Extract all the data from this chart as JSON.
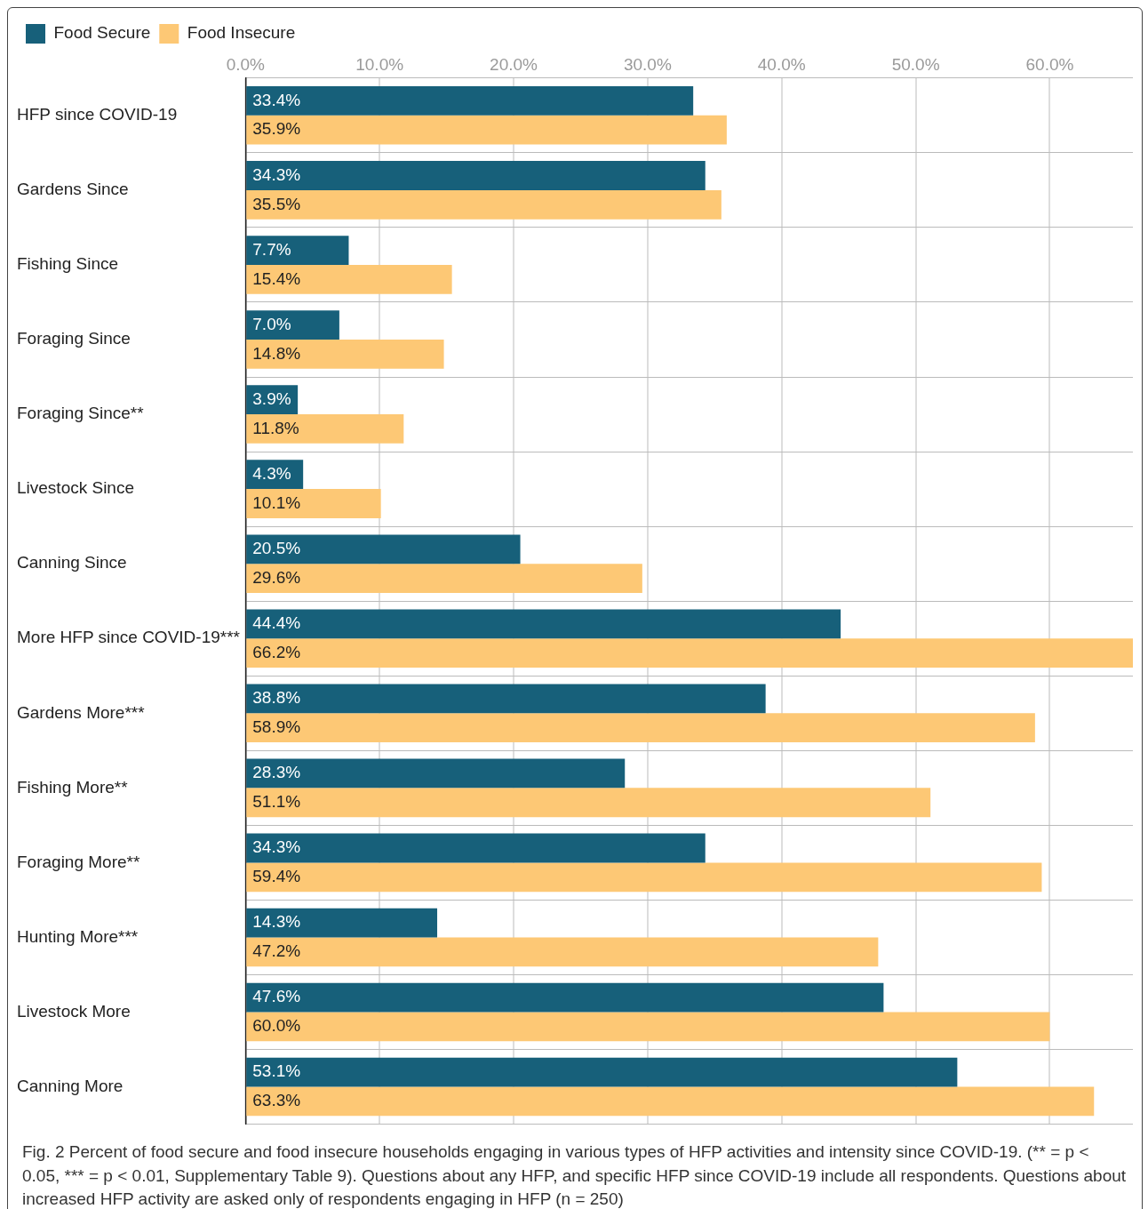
{
  "chart_data": {
    "type": "bar",
    "orientation": "horizontal",
    "categories": [
      "HFP since COVID-19",
      "Gardens Since",
      "Fishing Since",
      "Foraging Since",
      "Foraging Since**",
      "Livestock Since",
      "Canning Since",
      "More HFP since COVID-19***",
      "Gardens More***",
      "Fishing More**",
      "Foraging More**",
      "Hunting More***",
      "Livestock More",
      "Canning More"
    ],
    "series": [
      {
        "name": "Food Secure",
        "color": "#17607a",
        "values": [
          33.4,
          34.3,
          7.7,
          7.0,
          3.9,
          4.3,
          20.5,
          44.4,
          38.8,
          28.3,
          34.3,
          14.3,
          47.6,
          53.1
        ],
        "value_labels": [
          "33.4%",
          "34.3%",
          "7.7%",
          "7.0%",
          "3.9%",
          "4.3%",
          "20.5%",
          "44.4%",
          "38.8%",
          "28.3%",
          "34.3%",
          "14.3%",
          "47.6%",
          "53.1%"
        ]
      },
      {
        "name": "Food Insecure",
        "color": "#fdc875",
        "values": [
          35.9,
          35.5,
          15.4,
          14.8,
          11.8,
          10.1,
          29.6,
          66.2,
          58.9,
          51.1,
          59.4,
          47.2,
          60.0,
          63.3
        ],
        "value_labels": [
          "35.9%",
          "35.5%",
          "15.4%",
          "14.8%",
          "11.8%",
          "10.1%",
          "29.6%",
          "66.2%",
          "58.9%",
          "51.1%",
          "59.4%",
          "47.2%",
          "60.0%",
          "63.3%"
        ]
      }
    ],
    "xlim": [
      0,
      66.2
    ],
    "xticks": [
      {
        "value": 0,
        "label": "0.0%"
      },
      {
        "value": 10,
        "label": "10.0%"
      },
      {
        "value": 20,
        "label": "20.0%"
      },
      {
        "value": 30,
        "label": "30.0%"
      },
      {
        "value": 40,
        "label": "40.0%"
      },
      {
        "value": 50,
        "label": "50.0%"
      },
      {
        "value": 60,
        "label": "60.0%"
      }
    ],
    "grid": true,
    "legend": "top left",
    "annotations": [
      "Fig. 2 Percent of food secure and food insecure households engaging in various types of HFP activities and intensity since COVID-19. (** = p < 0.05, *** = p < 0.01, Supplementary Table 9). Questions about any HFP, and specific HFP since COVID-19 include all respondents. Questions about increased HFP activity are asked only of respondents engaging in HFP (n = 250)"
    ]
  }
}
